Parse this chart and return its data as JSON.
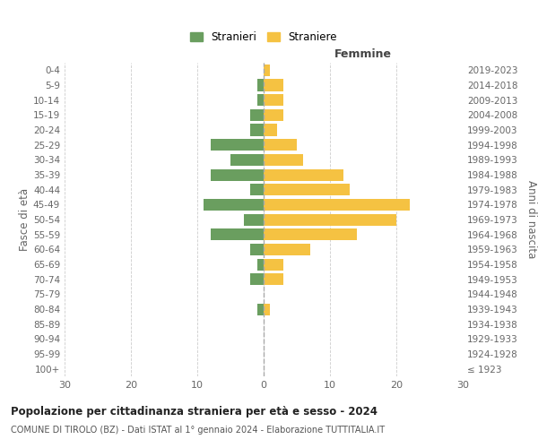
{
  "age_groups": [
    "100+",
    "95-99",
    "90-94",
    "85-89",
    "80-84",
    "75-79",
    "70-74",
    "65-69",
    "60-64",
    "55-59",
    "50-54",
    "45-49",
    "40-44",
    "35-39",
    "30-34",
    "25-29",
    "20-24",
    "15-19",
    "10-14",
    "5-9",
    "0-4"
  ],
  "birth_years": [
    "≤ 1923",
    "1924-1928",
    "1929-1933",
    "1934-1938",
    "1939-1943",
    "1944-1948",
    "1949-1953",
    "1954-1958",
    "1959-1963",
    "1964-1968",
    "1969-1973",
    "1974-1978",
    "1979-1983",
    "1984-1988",
    "1989-1993",
    "1994-1998",
    "1999-2003",
    "2004-2008",
    "2009-2013",
    "2014-2018",
    "2019-2023"
  ],
  "males": [
    0,
    0,
    0,
    0,
    1,
    0,
    2,
    1,
    2,
    8,
    3,
    9,
    2,
    8,
    5,
    8,
    2,
    2,
    1,
    1,
    0
  ],
  "females": [
    0,
    0,
    0,
    0,
    1,
    0,
    3,
    3,
    7,
    14,
    20,
    22,
    13,
    12,
    6,
    5,
    2,
    3,
    3,
    3,
    1
  ],
  "male_color": "#6a9e5f",
  "female_color": "#f5c242",
  "title": "Popolazione per cittadinanza straniera per età e sesso - 2024",
  "subtitle": "COMUNE DI TIROLO (BZ) - Dati ISTAT al 1° gennaio 2024 - Elaborazione TUTTITALIA.IT",
  "ylabel_left": "Fasce di età",
  "ylabel_right": "Anni di nascita",
  "xlabel_right": "Femmine",
  "legend_males": "Stranieri",
  "legend_females": "Straniere",
  "xlim": 30,
  "background_color": "#ffffff",
  "grid_color": "#cccccc",
  "dashed_line_color": "#aaaaaa"
}
